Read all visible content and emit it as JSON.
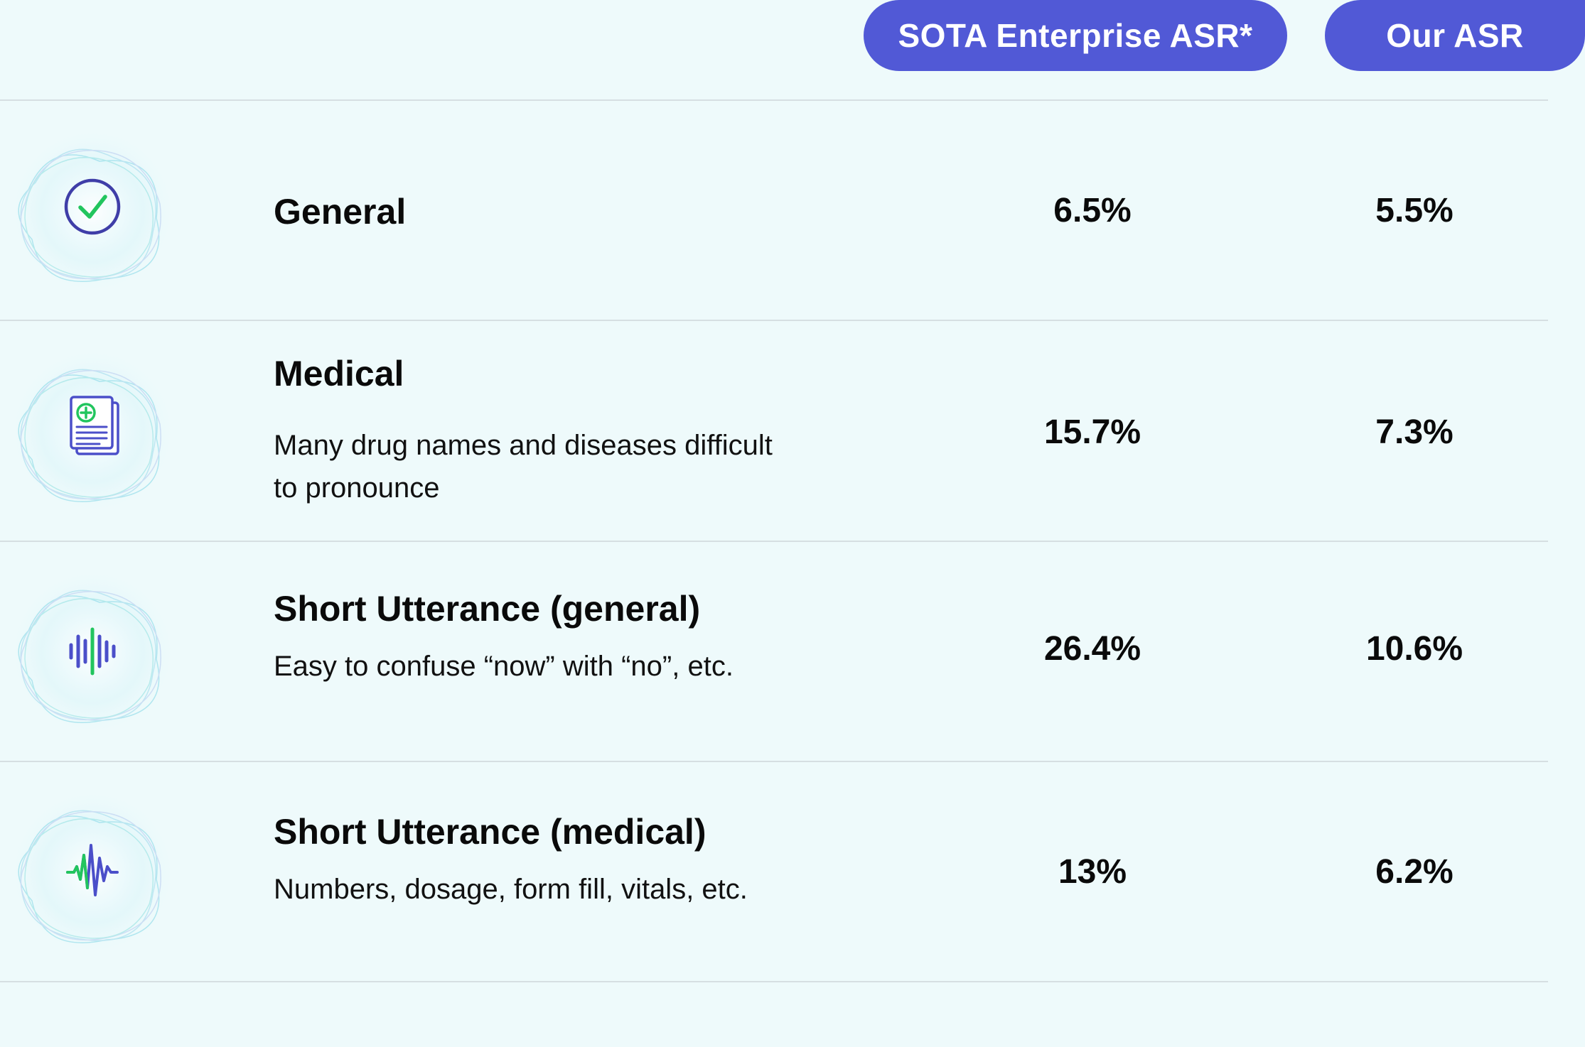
{
  "chart_data": {
    "type": "table",
    "columns": [
      "SOTA Enterprise ASR*",
      "Our ASR"
    ],
    "rows": [
      {
        "category": "General",
        "description": "",
        "values": [
          "6.5%",
          "5.5%"
        ],
        "icon": "check-circle-icon"
      },
      {
        "category": "Medical",
        "description": "Many drug names and diseases difficult to pronounce",
        "values": [
          "15.7%",
          "7.3%"
        ],
        "icon": "medical-document-icon"
      },
      {
        "category": "Short Utterance (general)",
        "description": "Easy to confuse “now” with “no”, etc.",
        "values": [
          "26.4%",
          "10.6%"
        ],
        "icon": "sound-wave-icon"
      },
      {
        "category": "Short Utterance (medical)",
        "description": "Numbers, dosage, form fill, vitals, etc.",
        "values": [
          "13%",
          "6.2%"
        ],
        "icon": "heartbeat-wave-icon"
      }
    ]
  },
  "colors": {
    "accent": "#5159d6",
    "background": "#eefafb",
    "icon_green": "#22c55e",
    "icon_blue": "#4b4fc9",
    "divider": "#d6dfe2"
  }
}
